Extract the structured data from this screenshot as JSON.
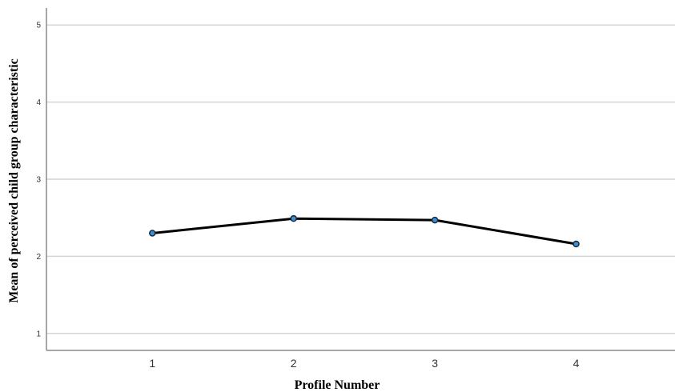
{
  "chart_data": {
    "type": "line",
    "xlabel": "Profile Number",
    "ylabel": "Mean of perceived child group characteristic",
    "x": [
      1,
      2,
      3,
      4
    ],
    "y_ticks": [
      1,
      2,
      3,
      4,
      5
    ],
    "series": [
      {
        "values": [
          2.3,
          2.49,
          2.47,
          2.16
        ]
      }
    ],
    "xlim": [
      0.25,
      4.7
    ],
    "ylim": [
      0.78,
      5.22
    ],
    "grid": true,
    "colors": {
      "line": "#000000",
      "marker_fill": "#3a8fd6",
      "marker_stroke": "#1a2a3a",
      "grid": "#d4d4d4",
      "axis": "#8a8a8a"
    }
  }
}
